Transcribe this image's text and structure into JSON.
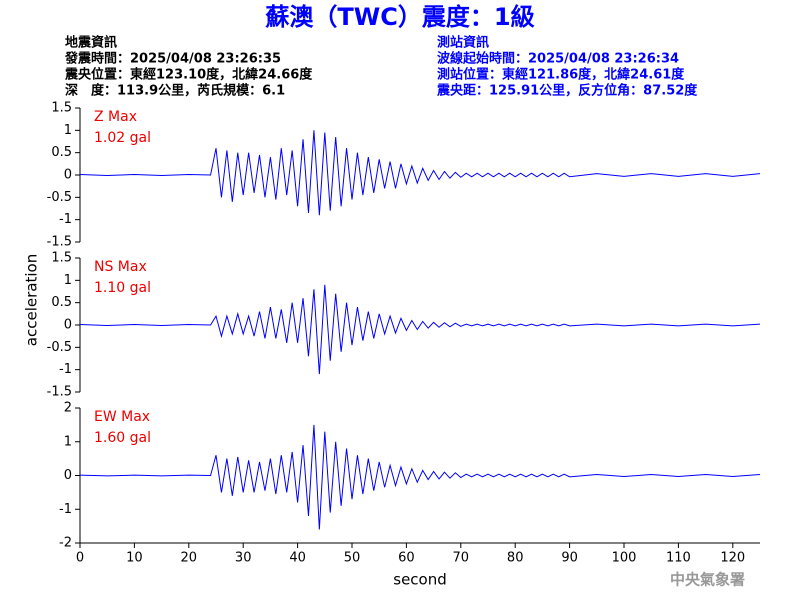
{
  "header": {
    "title": "蘇澳（TWC）震度：1級",
    "left": [
      "地震資訊",
      "發震時間：2025/04/08 23:26:35",
      "震央位置：東經123.10度，北緯24.66度",
      "深　度：113.9公里，芮氏規模：6.1"
    ],
    "right": [
      "測站資訊",
      "波線起始時間：2025/04/08 23:26:34",
      "測站位置：東經121.86度，北緯24.61度",
      "震央距：125.91公里，反方位角：87.52度"
    ],
    "footer": "中央氣象署"
  },
  "chart_data": [
    {
      "type": "line",
      "label": "Z Max",
      "max_label": "1.02 gal",
      "color": "#0000ff",
      "x": [
        0,
        5,
        10,
        15,
        20,
        24,
        25,
        26,
        27,
        28,
        29,
        30,
        31,
        32,
        33,
        34,
        35,
        36,
        37,
        38,
        39,
        40,
        41,
        42,
        43,
        44,
        45,
        46,
        47,
        48,
        49,
        50,
        51,
        52,
        53,
        54,
        55,
        56,
        57,
        58,
        59,
        60,
        61,
        62,
        63,
        64,
        65,
        66,
        67,
        68,
        69,
        70,
        71,
        72,
        73,
        74,
        75,
        76,
        77,
        78,
        79,
        80,
        81,
        82,
        83,
        84,
        85,
        86,
        87,
        88,
        89,
        90,
        95,
        100,
        105,
        110,
        115,
        120,
        125
      ],
      "values": [
        0.01,
        -0.01,
        0.01,
        -0.01,
        0.01,
        0,
        0.6,
        -0.5,
        0.55,
        -0.6,
        0.5,
        -0.45,
        0.5,
        -0.4,
        0.45,
        -0.5,
        0.4,
        -0.55,
        0.6,
        -0.45,
        0.55,
        -0.7,
        0.8,
        -0.85,
        1.0,
        -0.9,
        0.95,
        -0.8,
        0.85,
        -0.7,
        0.6,
        -0.55,
        0.5,
        -0.45,
        0.4,
        -0.4,
        0.35,
        -0.3,
        0.3,
        -0.3,
        0.25,
        -0.2,
        0.2,
        -0.18,
        0.15,
        -0.12,
        0.1,
        -0.1,
        0.08,
        -0.07,
        0.06,
        -0.05,
        0.04,
        -0.04,
        0.04,
        -0.04,
        0.04,
        -0.04,
        0.04,
        -0.04,
        0.04,
        -0.04,
        0.04,
        -0.04,
        0.04,
        -0.04,
        0.04,
        -0.04,
        0.04,
        -0.04,
        0.04,
        -0.04,
        0.03,
        -0.03,
        0.03,
        -0.03,
        0.03,
        -0.03,
        0.03
      ],
      "xlim": [
        0,
        125
      ],
      "ylim": [
        -1.5,
        1.5
      ],
      "yticks": [
        -1.5,
        -1,
        -0.5,
        0,
        0.5,
        1,
        1.5
      ]
    },
    {
      "type": "line",
      "label": "NS Max",
      "max_label": "1.10 gal",
      "color": "#0000ff",
      "ylabel": "acceleration",
      "x": [
        0,
        5,
        10,
        15,
        20,
        24,
        25,
        26,
        27,
        28,
        29,
        30,
        31,
        32,
        33,
        34,
        35,
        36,
        37,
        38,
        39,
        40,
        41,
        42,
        43,
        44,
        45,
        46,
        47,
        48,
        49,
        50,
        51,
        52,
        53,
        54,
        55,
        56,
        57,
        58,
        59,
        60,
        61,
        62,
        63,
        64,
        65,
        66,
        67,
        68,
        69,
        70,
        71,
        72,
        73,
        74,
        75,
        76,
        77,
        78,
        79,
        80,
        81,
        82,
        83,
        84,
        85,
        86,
        87,
        88,
        89,
        90,
        95,
        100,
        105,
        110,
        115,
        120,
        125
      ],
      "values": [
        0.01,
        -0.01,
        0.01,
        -0.01,
        0.01,
        0,
        0.2,
        -0.25,
        0.2,
        -0.2,
        0.25,
        -0.2,
        0.2,
        -0.25,
        0.3,
        -0.3,
        0.4,
        -0.3,
        0.35,
        -0.4,
        0.5,
        -0.4,
        0.6,
        -0.7,
        0.8,
        -1.1,
        0.9,
        -0.8,
        0.7,
        -0.6,
        0.5,
        -0.45,
        0.4,
        -0.35,
        0.3,
        -0.3,
        0.25,
        -0.2,
        0.2,
        -0.18,
        0.15,
        -0.12,
        0.1,
        -0.1,
        0.08,
        -0.07,
        0.06,
        -0.05,
        0.05,
        -0.04,
        0.04,
        -0.03,
        0.02,
        -0.02,
        0.02,
        -0.02,
        0.02,
        -0.02,
        0.02,
        -0.02,
        0.02,
        -0.02,
        0.02,
        -0.02,
        0.02,
        -0.02,
        0.02,
        -0.02,
        0.02,
        -0.02,
        0.02,
        -0.02,
        0.02,
        -0.02,
        0.02,
        -0.02,
        0.02,
        -0.02,
        0.02
      ],
      "xlim": [
        0,
        125
      ],
      "ylim": [
        -1.5,
        1.5
      ],
      "yticks": [
        -1.5,
        -1,
        -0.5,
        0,
        0.5,
        1,
        1.5
      ]
    },
    {
      "type": "line",
      "label": "EW Max",
      "max_label": "1.60 gal",
      "color": "#0000ff",
      "xlabel": "second",
      "x": [
        0,
        5,
        10,
        15,
        20,
        24,
        25,
        26,
        27,
        28,
        29,
        30,
        31,
        32,
        33,
        34,
        35,
        36,
        37,
        38,
        39,
        40,
        41,
        42,
        43,
        44,
        45,
        46,
        47,
        48,
        49,
        50,
        51,
        52,
        53,
        54,
        55,
        56,
        57,
        58,
        59,
        60,
        61,
        62,
        63,
        64,
        65,
        66,
        67,
        68,
        69,
        70,
        71,
        72,
        73,
        74,
        75,
        76,
        77,
        78,
        79,
        80,
        81,
        82,
        83,
        84,
        85,
        86,
        87,
        88,
        89,
        90,
        95,
        100,
        105,
        110,
        115,
        120,
        125
      ],
      "values": [
        0.01,
        -0.01,
        0.01,
        -0.01,
        0.01,
        0,
        0.6,
        -0.5,
        0.5,
        -0.6,
        0.55,
        -0.5,
        0.45,
        -0.5,
        0.4,
        -0.45,
        0.5,
        -0.55,
        0.6,
        -0.5,
        0.7,
        -0.8,
        0.9,
        -1.2,
        1.5,
        -1.6,
        1.3,
        -1.1,
        1.0,
        -0.9,
        0.8,
        -0.7,
        0.6,
        -0.55,
        0.5,
        -0.45,
        0.4,
        -0.35,
        0.3,
        -0.3,
        0.25,
        -0.25,
        0.2,
        -0.2,
        0.15,
        -0.12,
        0.12,
        -0.1,
        0.1,
        -0.08,
        0.08,
        -0.06,
        0.04,
        -0.04,
        0.04,
        -0.04,
        0.04,
        -0.04,
        0.04,
        -0.04,
        0.04,
        -0.04,
        0.04,
        -0.04,
        0.04,
        -0.04,
        0.04,
        -0.04,
        0.04,
        -0.04,
        0.04,
        -0.04,
        0.03,
        -0.03,
        0.03,
        -0.03,
        0.03,
        -0.03,
        0.03
      ],
      "xlim": [
        0,
        125
      ],
      "ylim": [
        -2,
        2
      ],
      "yticks": [
        -2,
        -1,
        0,
        1,
        2
      ],
      "xticks": [
        0,
        10,
        20,
        30,
        40,
        50,
        60,
        70,
        80,
        90,
        100,
        110,
        120
      ]
    }
  ]
}
